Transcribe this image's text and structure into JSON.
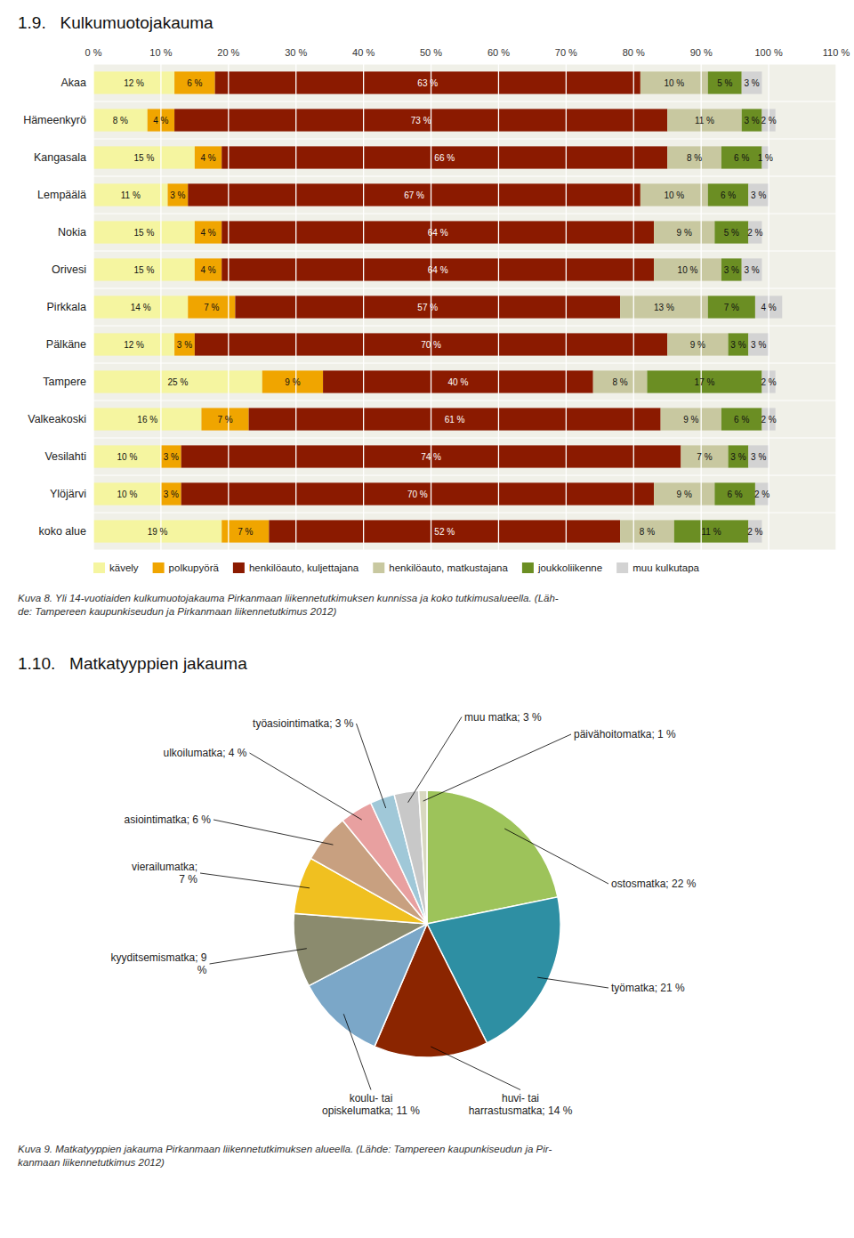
{
  "chart_data": [
    {
      "type": "bar",
      "orientation": "horizontal",
      "stacked": true,
      "title": "1.9.   Kulkumuotojakauma",
      "categories": [
        "Akaa",
        "Hämeenkyrö",
        "Kangasala",
        "Lempäälä",
        "Nokia",
        "Orivesi",
        "Pirkkala",
        "Pälkäne",
        "Tampere",
        "Valkeakoski",
        "Vesilahti",
        "Ylöjärvi",
        "koko alue"
      ],
      "series": [
        {
          "name": "kävely",
          "color": "#f5f5a0",
          "values": [
            12,
            8,
            15,
            11,
            15,
            15,
            14,
            12,
            25,
            16,
            10,
            10,
            19
          ],
          "value_labels": [
            "12 %",
            "8 %",
            "15 %",
            "11 %",
            "15 %",
            "15 %",
            "14 %",
            "12 %",
            "25 %",
            "16 %",
            "10 %",
            "10 %",
            "19 %"
          ]
        },
        {
          "name": "polkupyörä",
          "color": "#f0a500",
          "values": [
            6,
            4,
            4,
            3,
            4,
            4,
            7,
            3,
            9,
            7,
            3,
            3,
            7
          ],
          "value_labels": [
            "6 %",
            "4 %",
            "4 %",
            "3 %",
            "4 %",
            "4 %",
            "7 %",
            "3 %",
            "9 %",
            "7 %",
            "3 %",
            "3 %",
            "7 %"
          ]
        },
        {
          "name": "henkilöauto, kuljettajana",
          "color": "#8b1a00",
          "values": [
            63,
            73,
            66,
            67,
            64,
            64,
            57,
            70,
            40,
            61,
            74,
            70,
            52
          ],
          "value_labels": [
            "63 %",
            "73 %",
            "66 %",
            "67 %",
            "64 %",
            "64 %",
            "57 %",
            "70 %",
            "40 %",
            "61 %",
            "74 %",
            "70 %",
            "52 %"
          ]
        },
        {
          "name": "henkilöauto, matkustajana",
          "color": "#c8c8a0",
          "values": [
            10,
            11,
            8,
            10,
            9,
            10,
            13,
            9,
            8,
            9,
            7,
            9,
            8
          ],
          "value_labels": [
            "10 %",
            "11 %",
            "8 %",
            "10 %",
            "9 %",
            "10 %",
            "13 %",
            "9 %",
            "8 %",
            "9 %",
            "7 %",
            "9 %",
            "8 %"
          ]
        },
        {
          "name": "joukkoliikenne",
          "color": "#6b8e23",
          "values": [
            5,
            3,
            6,
            6,
            5,
            3,
            7,
            3,
            17,
            6,
            3,
            6,
            11
          ],
          "value_labels": [
            "5 %",
            "3 %",
            "6 %",
            "6 %",
            "5 %",
            "3 %",
            "7 %",
            "3 %",
            "17 %",
            "6 %",
            "3 %",
            "6 %",
            "11 %"
          ]
        },
        {
          "name": "muu kulkutapa",
          "color": "#d3d3d3",
          "values": [
            3,
            2,
            1,
            3,
            2,
            3,
            4,
            3,
            2,
            2,
            3,
            2,
            2
          ],
          "value_labels": [
            "3 %",
            "2 %",
            "1 %",
            "3 %",
            "2 %",
            "3 %",
            "4 %",
            "3 %",
            "2 %",
            "2 %",
            "3 %",
            "2 %",
            "2 %"
          ]
        }
      ],
      "xlim": [
        0,
        110
      ],
      "xticks": [
        {
          "value": 0,
          "label": "0 %"
        },
        {
          "value": 10,
          "label": "10 %"
        },
        {
          "value": 20,
          "label": "20 %"
        },
        {
          "value": 30,
          "label": "30 %"
        },
        {
          "value": 40,
          "label": "40 %"
        },
        {
          "value": 50,
          "label": "50 %"
        },
        {
          "value": 60,
          "label": "60 %"
        },
        {
          "value": 70,
          "label": "70 %"
        },
        {
          "value": 80,
          "label": "80 %"
        },
        {
          "value": 90,
          "label": "90 %"
        },
        {
          "value": 100,
          "label": "100 %"
        },
        {
          "value": 110,
          "label": "110 %"
        }
      ],
      "grid": true,
      "data_labels": true,
      "legend": "bottom",
      "annotations": [
        "Kuva 8. Yli 14-vuotiaiden kulkumuotojakauma Pirkanmaan liikennetutkimuksen kunnissa ja koko tutkimusalueella. (Läh-\nde: Tampereen kaupunkiseudun ja Pirkanmaan liikennetutkimus 2012)"
      ]
    },
    {
      "type": "pie",
      "title": "1.10.   Matkatyyppien jakauma",
      "categories": [
        "ostosmatka; 22 %",
        "työmatka; 21 %",
        "huvi- tai\nharrastusmatka; 14 %",
        "koulu- tai\nopiskelumatka; 11 %",
        "kyyditsemismatka; 9\n%",
        "vierailumatka;\n7 %",
        "asiointimatka; 6 %",
        "ulkoilumatka; 4 %",
        "työasiointimatka; 3 %",
        "muu matka; 3 %",
        "päivähoitomatka; 1 %"
      ],
      "values": [
        22,
        21,
        14,
        11,
        9,
        7,
        6,
        4,
        3,
        3,
        1
      ],
      "colors": [
        "#9dc35a",
        "#2e8fa3",
        "#8b2500",
        "#7ba7c8",
        "#8b8b6e",
        "#f0c020",
        "#c8a080",
        "#e8a0a0",
        "#a0c8d8",
        "#c8c8c8",
        "#d8d8c0"
      ],
      "annotations": [
        "Kuva 9. Matkatyyppien jakauma Pirkanmaan liikennetutkimuksen alueella. (Lähde: Tampereen kaupunkiseudun ja Pir-\nkanmaan liikennetutkimus 2012)"
      ]
    }
  ]
}
